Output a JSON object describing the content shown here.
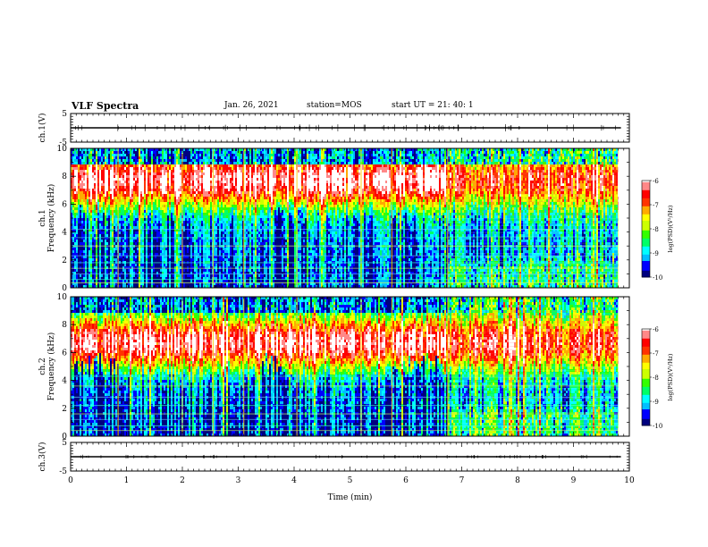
{
  "header": {
    "title": "VLF Spectra",
    "date": "Jan. 26, 2021",
    "station": "station=MOS",
    "start_time": "start UT =  21: 40: 1"
  },
  "chart_data": [
    {
      "id": "ch1-waveform",
      "type": "line",
      "ylabel": "ch.1(V)",
      "ylim": [
        -5,
        5
      ],
      "yticks": [
        5,
        -5
      ],
      "xlim": [
        0,
        10
      ],
      "baseline": 0
    },
    {
      "id": "ch1-spectrogram",
      "type": "heatmap",
      "ylabel_top": "ch.1",
      "ylabel": "Frequency (kHz)",
      "ylim": [
        0,
        10
      ],
      "yticks": [
        0,
        2,
        4,
        6,
        8,
        10
      ],
      "xlim": [
        0,
        10
      ],
      "data_end_min": 9.8,
      "colorbar": {
        "label": "log(PSD)(V²/Hz)",
        "range": [
          -10,
          -6
        ],
        "ticks": [
          -6,
          -7,
          -8,
          -9,
          -10
        ]
      },
      "segments_min": [
        0,
        0.85,
        2.0,
        2.55,
        3.1,
        4.05,
        5.2,
        5.75,
        6.75,
        9.8
      ]
    },
    {
      "id": "ch2-spectrogram",
      "type": "heatmap",
      "ylabel_top": "ch.2",
      "ylabel": "Frequency (kHz)",
      "ylim": [
        0,
        10
      ],
      "yticks": [
        0,
        2,
        4,
        6,
        8,
        10
      ],
      "xlim": [
        0,
        10
      ],
      "data_end_min": 9.8,
      "colorbar": {
        "label": "log(PSD)(V²/Hz)",
        "range": [
          -10,
          -6
        ],
        "ticks": [
          -6,
          -7,
          -8,
          -9,
          -10
        ]
      },
      "segments_min": [
        0,
        0.85,
        2.0,
        2.55,
        3.1,
        4.05,
        5.2,
        5.75,
        6.75,
        9.8
      ]
    },
    {
      "id": "ch3-waveform",
      "type": "line",
      "ylabel": "ch.3(V)",
      "ylim": [
        -5,
        5
      ],
      "yticks": [
        5,
        -5
      ],
      "xlim": [
        0,
        10
      ],
      "baseline": 0
    }
  ],
  "xaxis": {
    "label": "Time (min)",
    "ticks": [
      0,
      1,
      2,
      3,
      4,
      5,
      6,
      7,
      8,
      9,
      10
    ]
  },
  "colormap": [
    "#00007f",
    "#0000ff",
    "#00bfff",
    "#00ffff",
    "#00ff66",
    "#33ff00",
    "#ccff00",
    "#ffff00",
    "#ffaa00",
    "#ff3300",
    "#ff0000",
    "#ff8888",
    "#ffffff"
  ]
}
